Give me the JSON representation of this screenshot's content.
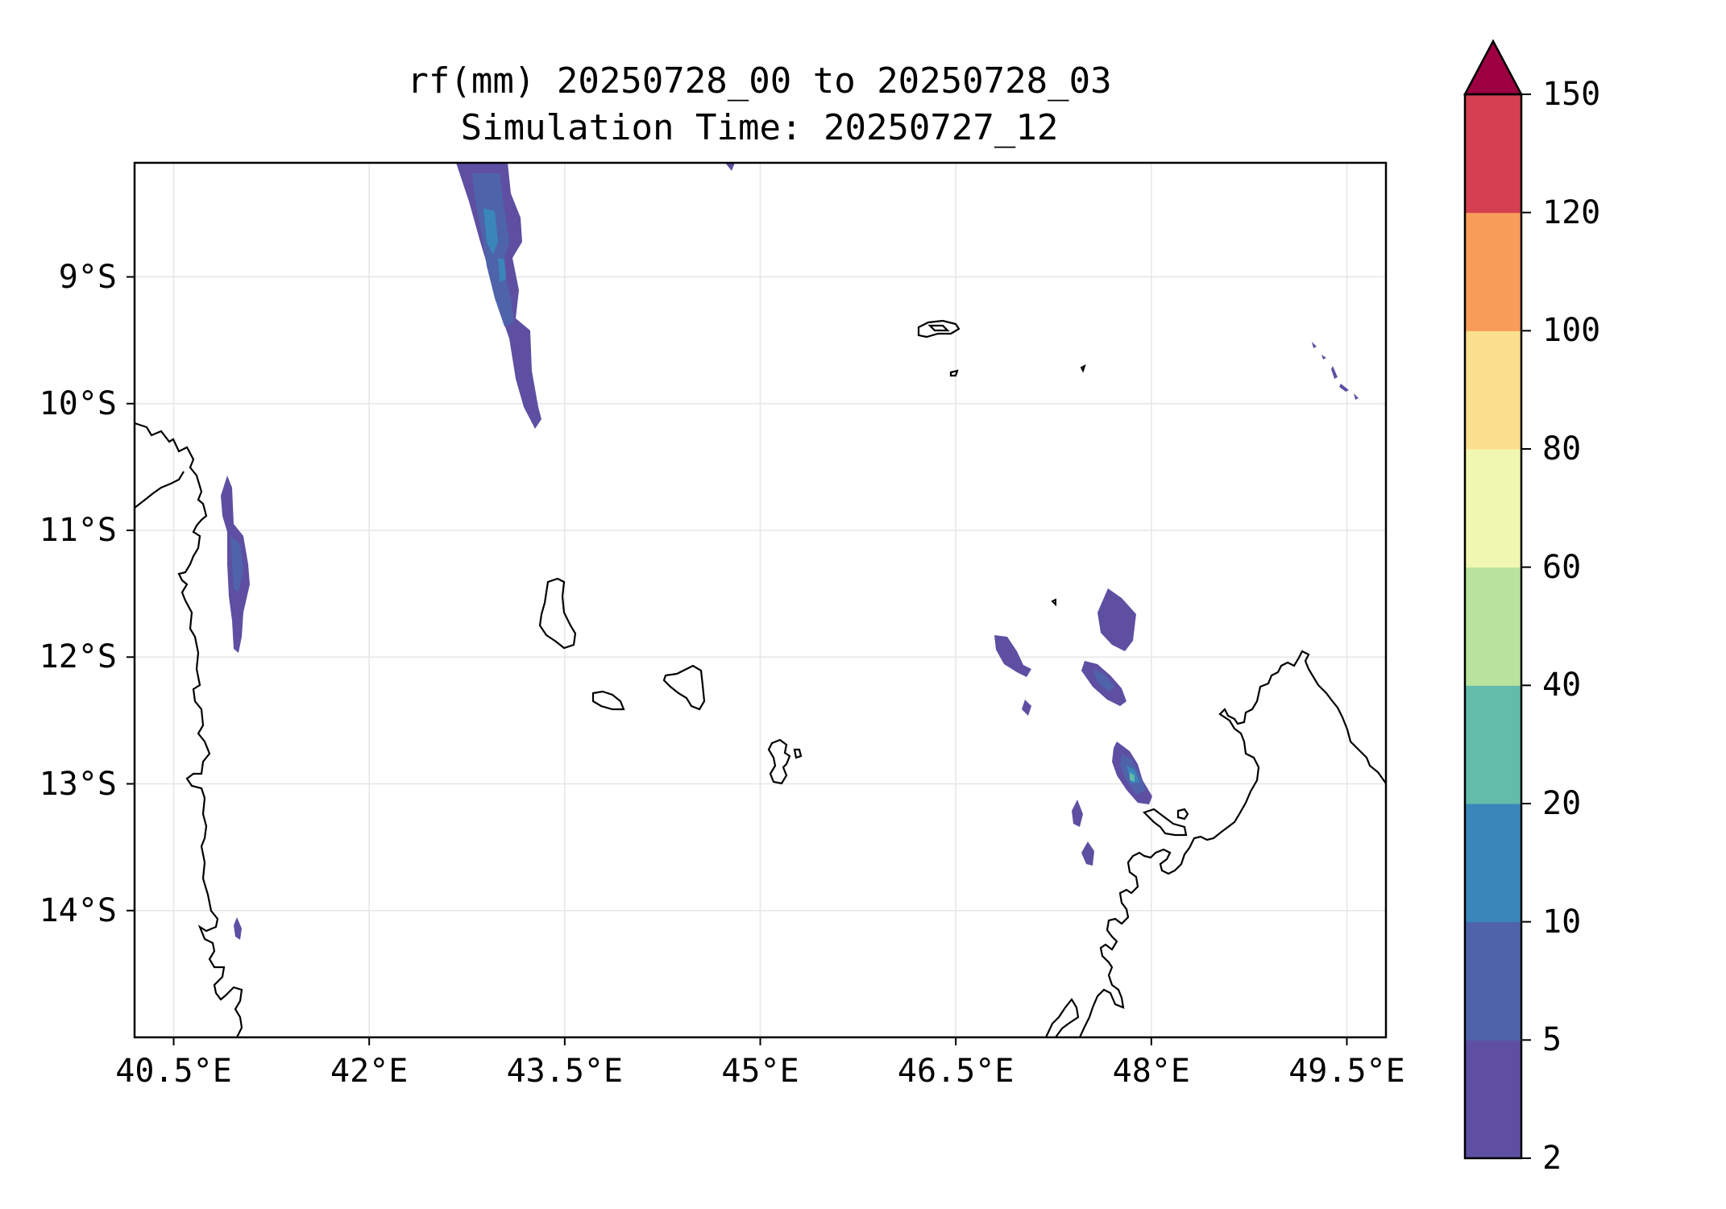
{
  "title": {
    "line1": "rf(mm) 20250728_00 to 20250728_03",
    "line2": "Simulation Time: 20250727_12"
  },
  "map": {
    "lon_range": [
      40.2,
      49.8
    ],
    "lat_range": [
      -15.0,
      -8.1
    ],
    "grid": true,
    "x_ticks": [
      {
        "value": 40.5,
        "label": "40.5°E"
      },
      {
        "value": 42.0,
        "label": "42°E"
      },
      {
        "value": 43.5,
        "label": "43.5°E"
      },
      {
        "value": 45.0,
        "label": "45°E"
      },
      {
        "value": 46.5,
        "label": "46.5°E"
      },
      {
        "value": 48.0,
        "label": "48°E"
      },
      {
        "value": 49.5,
        "label": "49.5°E"
      }
    ],
    "y_ticks": [
      {
        "value": -9,
        "label": "9°S"
      },
      {
        "value": -10,
        "label": "10°S"
      },
      {
        "value": -11,
        "label": "11°S"
      },
      {
        "value": -12,
        "label": "12°S"
      },
      {
        "value": -13,
        "label": "13°S"
      },
      {
        "value": -14,
        "label": "14°S"
      }
    ]
  },
  "colorbar": {
    "levels": [
      {
        "label": "2",
        "color": "#5e4fa2"
      },
      {
        "label": "5",
        "color": "#4f63ab"
      },
      {
        "label": "10",
        "color": "#3a86bb"
      },
      {
        "label": "20",
        "color": "#62bca9"
      },
      {
        "label": "40",
        "color": "#bae3a0"
      },
      {
        "label": "60",
        "color": "#f0f7b0"
      },
      {
        "label": "80",
        "color": "#fbdf8e"
      },
      {
        "label": "100",
        "color": "#f89c5a"
      },
      {
        "label": "120",
        "color": "#d63f51"
      },
      {
        "label": "150",
        "color": "#9e0142"
      }
    ],
    "extend": "max"
  },
  "colors": {
    "rain_2_5": "#5e4fa2",
    "rain_5_10": "#4f63ab",
    "rain_10_20": "#3a86bb",
    "rain_20_40": "#62bca9",
    "coastline": "#000000",
    "gridline": "#e6e6e6"
  }
}
